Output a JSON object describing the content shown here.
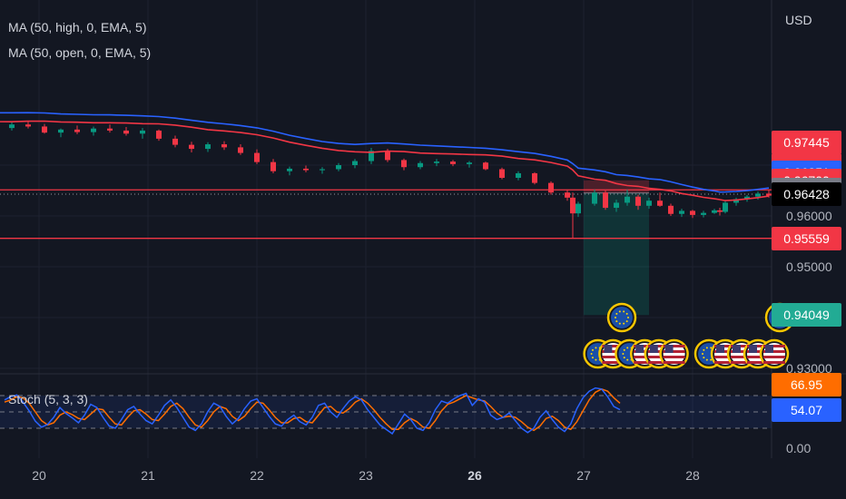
{
  "chart_data": {
    "type": "line",
    "subtype": "candlestick",
    "currency": "USD",
    "indicators": [
      {
        "name": "MA (50, high, 0, EMA, 5)",
        "color": "#2962ff"
      },
      {
        "name": "MA (50, open, 0, EMA, 5)",
        "color": "#f23645"
      }
    ],
    "x_ticks": [
      {
        "label": "20",
        "day": 20,
        "bold": false
      },
      {
        "label": "21",
        "day": 21,
        "bold": false
      },
      {
        "label": "22",
        "day": 22,
        "bold": false
      },
      {
        "label": "23",
        "day": 23,
        "bold": false
      },
      {
        "label": "26",
        "day": 24,
        "bold": true
      },
      {
        "label": "27",
        "day": 25,
        "bold": false
      },
      {
        "label": "28",
        "day": 26,
        "bold": false
      }
    ],
    "price_ticks": [
      "0.96000",
      "0.95000",
      "0.93000"
    ],
    "price_axis_values": [
      0.96,
      0.95,
      0.93
    ],
    "price_tags": [
      {
        "label": "0.97445",
        "value": 0.97445,
        "bg": "#f23645",
        "fg": "#ffffff"
      },
      {
        "label": "0.96997",
        "value": 0.96997,
        "bg": "#f23645",
        "fg": "#ffffff"
      },
      {
        "label": "0.96851",
        "value": 0.96851,
        "bg": "#2962ff",
        "fg": "#ffffff"
      },
      {
        "label": "0.96700",
        "value": 0.967,
        "bg": "#f23645",
        "fg": "#ffffff"
      },
      {
        "label": "0.96514",
        "value": 0.96514,
        "bg": "#787b86",
        "fg": "#ffffff"
      },
      {
        "label": "0.96428",
        "value": 0.96428,
        "bg": "#000000",
        "fg": "#ffffff"
      },
      {
        "label": "0.95559",
        "value": 0.95559,
        "bg": "#f23645",
        "fg": "#ffffff"
      },
      {
        "label": "0.94049",
        "value": 0.94049,
        "bg": "#22ab94",
        "fg": "#ffffff"
      }
    ],
    "horizontal_lines": [
      0.96514,
      0.95559
    ],
    "last_price": 0.96428,
    "position": {
      "entry": 0.9645,
      "stop": 0.967,
      "target": 0.94049,
      "day_start": 25.0,
      "day_end": 25.6
    },
    "ohlc": [
      [
        17.95,
        0.978,
        0.9788,
        0.9772,
        0.9775
      ],
      [
        18.1,
        0.9775,
        0.9782,
        0.9768,
        0.977
      ],
      [
        18.25,
        0.977,
        0.978,
        0.9764,
        0.9778
      ],
      [
        18.4,
        0.9778,
        0.9784,
        0.977,
        0.9772
      ],
      [
        18.55,
        0.9772,
        0.9779,
        0.9762,
        0.9766
      ],
      [
        18.7,
        0.9766,
        0.9776,
        0.9759,
        0.9771
      ],
      [
        18.85,
        0.9771,
        0.9778,
        0.9763,
        0.9765
      ],
      [
        19.0,
        0.9765,
        0.9773,
        0.9757,
        0.9769
      ],
      [
        19.15,
        0.9769,
        0.9777,
        0.9761,
        0.9768
      ],
      [
        19.3,
        0.9768,
        0.9781,
        0.9763,
        0.9776
      ],
      [
        19.45,
        0.9776,
        0.9784,
        0.9768,
        0.9779
      ],
      [
        19.6,
        0.9779,
        0.9786,
        0.977,
        0.9773
      ],
      [
        19.75,
        0.9773,
        0.9785,
        0.9768,
        0.978
      ],
      [
        19.9,
        0.978,
        0.9787,
        0.9772,
        0.9776
      ],
      [
        20.05,
        0.9776,
        0.9781,
        0.9762,
        0.9764
      ],
      [
        20.2,
        0.9764,
        0.9772,
        0.9755,
        0.977
      ],
      [
        20.35,
        0.977,
        0.9778,
        0.9761,
        0.9765
      ],
      [
        20.5,
        0.9765,
        0.9776,
        0.9758,
        0.9772
      ],
      [
        20.65,
        0.9772,
        0.978,
        0.9764,
        0.9768
      ],
      [
        20.8,
        0.9768,
        0.9775,
        0.9758,
        0.9762
      ],
      [
        20.95,
        0.9762,
        0.9773,
        0.9752,
        0.9768
      ],
      [
        21.1,
        0.9768,
        0.977,
        0.9748,
        0.9752
      ],
      [
        21.25,
        0.9752,
        0.9758,
        0.9735,
        0.974
      ],
      [
        21.4,
        0.974,
        0.9746,
        0.9725,
        0.9732
      ],
      [
        21.55,
        0.9732,
        0.9745,
        0.9726,
        0.9741
      ],
      [
        21.7,
        0.9741,
        0.9747,
        0.973,
        0.9735
      ],
      [
        21.85,
        0.9735,
        0.9741,
        0.972,
        0.9724
      ],
      [
        22.0,
        0.9724,
        0.9731,
        0.9702,
        0.9706
      ],
      [
        22.15,
        0.9706,
        0.9712,
        0.9684,
        0.9688
      ],
      [
        22.3,
        0.9688,
        0.9697,
        0.968,
        0.9693
      ],
      [
        22.45,
        0.9693,
        0.9699,
        0.9686,
        0.969
      ],
      [
        22.6,
        0.969,
        0.9696,
        0.9683,
        0.9692
      ],
      [
        22.75,
        0.9692,
        0.9704,
        0.9688,
        0.97
      ],
      [
        22.9,
        0.97,
        0.9712,
        0.9694,
        0.9708
      ],
      [
        23.05,
        0.9708,
        0.9734,
        0.9702,
        0.9728
      ],
      [
        23.2,
        0.9728,
        0.9732,
        0.9706,
        0.971
      ],
      [
        23.35,
        0.971,
        0.9713,
        0.969,
        0.9696
      ],
      [
        23.5,
        0.9696,
        0.9708,
        0.9692,
        0.9704
      ],
      [
        23.65,
        0.9704,
        0.9712,
        0.9698,
        0.9707
      ],
      [
        23.8,
        0.9707,
        0.971,
        0.9698,
        0.9702
      ],
      [
        23.95,
        0.9702,
        0.9708,
        0.9695,
        0.9705
      ],
      [
        24.1,
        0.9705,
        0.9707,
        0.969,
        0.9692
      ],
      [
        24.25,
        0.9692,
        0.9695,
        0.9672,
        0.9675
      ],
      [
        24.4,
        0.9675,
        0.9688,
        0.967,
        0.9684
      ],
      [
        24.55,
        0.9684,
        0.9686,
        0.9662,
        0.9665
      ],
      [
        24.7,
        0.9665,
        0.9668,
        0.9642,
        0.9646
      ],
      [
        24.85,
        0.9646,
        0.9652,
        0.963,
        0.9636
      ],
      [
        24.9,
        0.9636,
        0.9646,
        0.9556,
        0.9605
      ],
      [
        24.95,
        0.9605,
        0.9628,
        0.9598,
        0.9624
      ],
      [
        25.1,
        0.9624,
        0.9652,
        0.962,
        0.9646
      ],
      [
        25.2,
        0.9646,
        0.965,
        0.9612,
        0.9616
      ],
      [
        25.3,
        0.9616,
        0.9632,
        0.9608,
        0.9626
      ],
      [
        25.4,
        0.9626,
        0.9652,
        0.962,
        0.9638
      ],
      [
        25.5,
        0.9638,
        0.9642,
        0.9612,
        0.962
      ],
      [
        25.6,
        0.962,
        0.9636,
        0.9614,
        0.963
      ],
      [
        25.7,
        0.963,
        0.9646,
        0.9618,
        0.962
      ],
      [
        25.8,
        0.962,
        0.9624,
        0.96,
        0.9604
      ],
      [
        25.9,
        0.9604,
        0.9614,
        0.9598,
        0.961
      ],
      [
        26.0,
        0.961,
        0.9612,
        0.9596,
        0.9602
      ],
      [
        26.1,
        0.9602,
        0.961,
        0.9597,
        0.9606
      ],
      [
        26.2,
        0.9606,
        0.9614,
        0.9604,
        0.9611
      ],
      [
        26.25,
        0.9611,
        0.9616,
        0.9601,
        0.9608
      ],
      [
        26.3,
        0.9608,
        0.963,
        0.9605,
        0.9626
      ],
      [
        26.4,
        0.9626,
        0.9636,
        0.962,
        0.9633
      ],
      [
        26.5,
        0.9633,
        0.9641,
        0.9628,
        0.9638
      ],
      [
        26.6,
        0.9638,
        0.9648,
        0.9632,
        0.9644
      ],
      [
        26.7,
        0.9644,
        0.9652,
        0.9636,
        0.964
      ]
    ],
    "stochastic": {
      "name": "Stoch (5, 3, 3)",
      "k_color": "#2962ff",
      "d_color": "#ff6d00",
      "last_k": 54.07,
      "last_d": 66.95,
      "levels": [
        80,
        50,
        20
      ],
      "ticks": [
        "0.00"
      ],
      "k": [
        72,
        78,
        81,
        68,
        52,
        33,
        22,
        27,
        40,
        58,
        47,
        39,
        30,
        44,
        64,
        58,
        40,
        24,
        20,
        36,
        54,
        60,
        46,
        34,
        28,
        44,
        62,
        72,
        58,
        40,
        22,
        16,
        28,
        50,
        66,
        60,
        42,
        28,
        38,
        56,
        70,
        74,
        58,
        42,
        28,
        24,
        36,
        44,
        32,
        26,
        40,
        62,
        66,
        50,
        40,
        56,
        70,
        78,
        72,
        54,
        40,
        26,
        18,
        10,
        28,
        46,
        36,
        20,
        16,
        30,
        54,
        70,
        66,
        74,
        80,
        84,
        62,
        74,
        68,
        44,
        36,
        40,
        48,
        34,
        20,
        12,
        20,
        40,
        52,
        36,
        22,
        14,
        28,
        56,
        76,
        88,
        94,
        92,
        78,
        60,
        54
      ],
      "d": [
        68,
        72,
        78,
        76,
        66,
        50,
        34,
        26,
        30,
        44,
        50,
        45,
        38,
        36,
        46,
        56,
        54,
        40,
        28,
        26,
        40,
        52,
        54,
        46,
        36,
        34,
        46,
        60,
        66,
        56,
        40,
        26,
        22,
        34,
        50,
        60,
        56,
        42,
        34,
        42,
        56,
        68,
        66,
        54,
        40,
        30,
        30,
        38,
        40,
        32,
        30,
        44,
        58,
        60,
        50,
        48,
        56,
        68,
        74,
        66,
        54,
        40,
        28,
        18,
        18,
        30,
        38,
        32,
        22,
        20,
        34,
        52,
        64,
        68,
        74,
        80,
        76,
        72,
        70,
        60,
        48,
        40,
        42,
        40,
        32,
        22,
        16,
        24,
        38,
        42,
        34,
        22,
        18,
        32,
        52,
        72,
        86,
        92,
        88,
        76,
        66
      ]
    },
    "events": [
      {
        "day": 25.35,
        "row": 1,
        "icon": "eu-flag-icon"
      },
      {
        "day": 26.8,
        "row": 1,
        "icon": "eu-flag-icon"
      },
      {
        "day": 25.13,
        "row": 2,
        "icon": "eu-flag-icon"
      },
      {
        "day": 25.27,
        "row": 2,
        "icon": "us-flag-icon"
      },
      {
        "day": 25.42,
        "row": 2,
        "icon": "eu-flag-icon"
      },
      {
        "day": 25.56,
        "row": 2,
        "icon": "us-flag-icon"
      },
      {
        "day": 25.69,
        "row": 2,
        "icon": "us-flag-icon"
      },
      {
        "day": 25.83,
        "row": 2,
        "icon": "us-flag-icon"
      },
      {
        "day": 26.15,
        "row": 2,
        "icon": "eu-flag-icon"
      },
      {
        "day": 26.3,
        "row": 2,
        "icon": "us-flag-icon"
      },
      {
        "day": 26.45,
        "row": 2,
        "icon": "us-flag-icon"
      },
      {
        "day": 26.6,
        "row": 2,
        "icon": "us-flag-icon"
      },
      {
        "day": 26.75,
        "row": 2,
        "icon": "us-flag-icon"
      }
    ]
  }
}
